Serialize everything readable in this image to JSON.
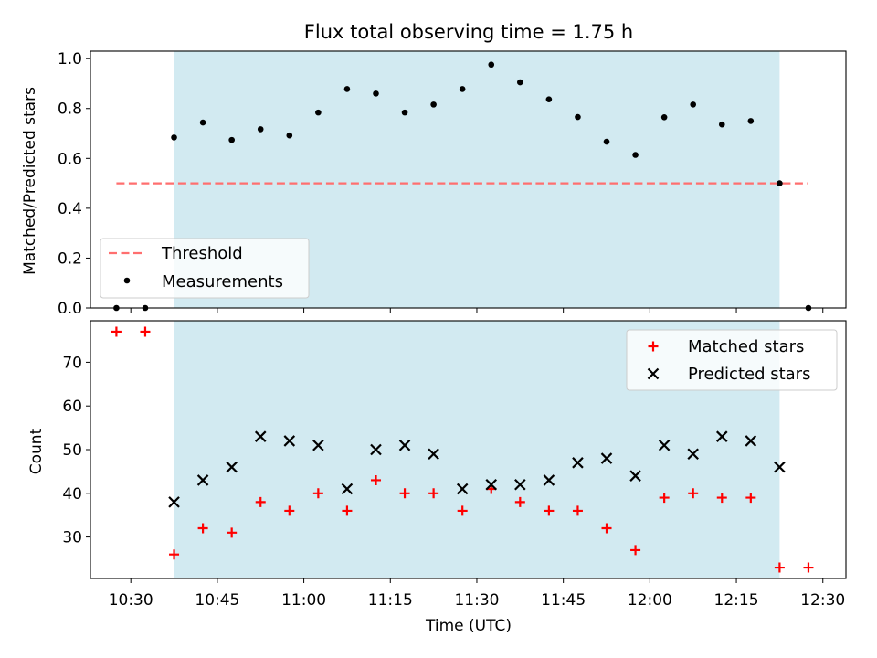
{
  "title": "Flux total observing time = 1.75 h",
  "colors": {
    "span": "#add8e6",
    "threshold": "#ff6f6f",
    "measurement": "#000000",
    "matched": "#ff0000",
    "predicted": "#000000"
  },
  "chart_data": [
    {
      "type": "scatter",
      "ylabel": "Matched/Predicted stars",
      "ylim": [
        0,
        1.03
      ],
      "yticks": [
        0.0,
        0.2,
        0.4,
        0.6,
        0.8,
        1.0
      ],
      "ytick_labels": [
        "0.0",
        "0.2",
        "0.4",
        "0.6",
        "0.8",
        "1.0"
      ],
      "highlight_span": [
        "10:37.5",
        "12:22.5"
      ],
      "threshold": {
        "name": "Threshold",
        "value": 0.5,
        "x_range": [
          "10:27.5",
          "12:27.5"
        ]
      },
      "legend_position": "lower-left",
      "series": [
        {
          "name": "Measurements",
          "x": [
            "10:27.5",
            "10:32.5",
            "10:37.5",
            "10:42.5",
            "10:47.5",
            "10:52.5",
            "10:57.5",
            "11:02.5",
            "11:07.5",
            "11:12.5",
            "11:17.5",
            "11:22.5",
            "11:27.5",
            "11:32.5",
            "11:37.5",
            "11:42.5",
            "11:47.5",
            "11:52.5",
            "11:57.5",
            "12:02.5",
            "12:07.5",
            "12:12.5",
            "12:17.5",
            "12:22.5",
            "12:27.5"
          ],
          "y": [
            0.0,
            0.0,
            0.684,
            0.744,
            0.674,
            0.717,
            0.692,
            0.784,
            0.878,
            0.86,
            0.784,
            0.816,
            0.878,
            0.976,
            0.905,
            0.837,
            0.766,
            0.667,
            0.614,
            0.765,
            0.816,
            0.736,
            0.75,
            0.5,
            0.0
          ]
        }
      ]
    },
    {
      "type": "scatter",
      "xlabel": "Time (UTC)",
      "ylabel": "Count",
      "ylim": [
        20.5,
        79.5
      ],
      "yticks": [
        30,
        40,
        50,
        60,
        70
      ],
      "ytick_labels": [
        "30",
        "40",
        "50",
        "60",
        "70"
      ],
      "xticks": [
        "10:30",
        "10:45",
        "11:00",
        "11:15",
        "11:30",
        "11:45",
        "12:00",
        "12:15",
        "12:30"
      ],
      "xlim": [
        "10:23",
        "12:34"
      ],
      "highlight_span": [
        "10:37.5",
        "12:22.5"
      ],
      "legend_position": "upper-right",
      "series": [
        {
          "name": "Matched stars",
          "x": [
            "10:27.5",
            "10:32.5",
            "10:37.5",
            "10:42.5",
            "10:47.5",
            "10:52.5",
            "10:57.5",
            "11:02.5",
            "11:07.5",
            "11:12.5",
            "11:17.5",
            "11:22.5",
            "11:27.5",
            "11:32.5",
            "11:37.5",
            "11:42.5",
            "11:47.5",
            "11:52.5",
            "11:57.5",
            "12:02.5",
            "12:07.5",
            "12:12.5",
            "12:17.5",
            "12:22.5",
            "12:27.5"
          ],
          "y": [
            77,
            77,
            26,
            32,
            31,
            38,
            36,
            40,
            36,
            43,
            40,
            40,
            36,
            41,
            38,
            36,
            36,
            32,
            27,
            39,
            40,
            39,
            39,
            23,
            23
          ]
        },
        {
          "name": "Predicted stars",
          "x": [
            "10:37.5",
            "10:42.5",
            "10:47.5",
            "10:52.5",
            "10:57.5",
            "11:02.5",
            "11:07.5",
            "11:12.5",
            "11:17.5",
            "11:22.5",
            "11:27.5",
            "11:32.5",
            "11:37.5",
            "11:42.5",
            "11:47.5",
            "11:52.5",
            "11:57.5",
            "12:02.5",
            "12:07.5",
            "12:12.5",
            "12:17.5",
            "12:22.5"
          ],
          "y": [
            38,
            43,
            46,
            53,
            52,
            51,
            41,
            50,
            51,
            49,
            41,
            42,
            42,
            43,
            47,
            48,
            44,
            51,
            49,
            53,
            52,
            46
          ]
        }
      ]
    }
  ]
}
